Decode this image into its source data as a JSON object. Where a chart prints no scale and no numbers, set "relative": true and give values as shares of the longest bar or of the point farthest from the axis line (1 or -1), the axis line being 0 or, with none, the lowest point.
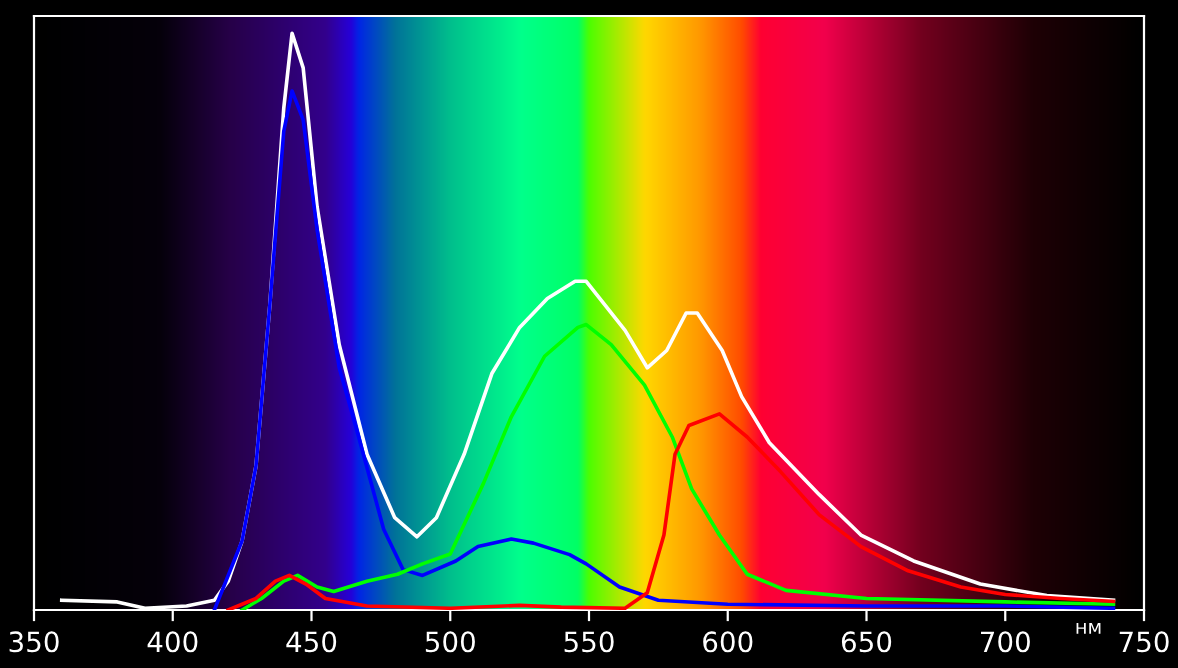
{
  "chart_data": {
    "type": "line",
    "relative": true,
    "xlabel": "нм",
    "xlim": [
      350,
      750
    ],
    "xticks": [
      350,
      400,
      450,
      500,
      550,
      600,
      650,
      700,
      750
    ],
    "series": [
      {
        "color": "#ffffff",
        "x": [
          360,
          380,
          390,
          405,
          415,
          420,
          425,
          430,
          435,
          440,
          443,
          447,
          452,
          460,
          470,
          480,
          488,
          495,
          505,
          515,
          525,
          535,
          545,
          549,
          563,
          571,
          578,
          585,
          589,
          598,
          605,
          615,
          633,
          648,
          667,
          691,
          715,
          739
        ],
        "values": [
          0.017,
          0.014,
          0.003,
          0.007,
          0.017,
          0.05,
          0.12,
          0.25,
          0.53,
          0.87,
          1.0,
          0.94,
          0.7,
          0.46,
          0.27,
          0.16,
          0.127,
          0.16,
          0.27,
          0.41,
          0.49,
          0.54,
          0.57,
          0.57,
          0.485,
          0.42,
          0.45,
          0.515,
          0.515,
          0.45,
          0.37,
          0.29,
          0.2,
          0.13,
          0.085,
          0.045,
          0.025,
          0.017
        ]
      },
      {
        "color": "#0000ff",
        "x": [
          415,
          425,
          430,
          435,
          440,
          443,
          447,
          452,
          460,
          467,
          476,
          483,
          490,
          502,
          510,
          522,
          530,
          543,
          549,
          561,
          575,
          600,
          650,
          700,
          739
        ],
        "values": [
          0.0,
          0.12,
          0.25,
          0.53,
          0.83,
          0.9,
          0.85,
          0.66,
          0.42,
          0.3,
          0.14,
          0.07,
          0.06,
          0.085,
          0.11,
          0.123,
          0.116,
          0.096,
          0.08,
          0.04,
          0.017,
          0.01,
          0.007,
          0.007,
          0.003
        ]
      },
      {
        "color": "#00ff00",
        "x": [
          425,
          432,
          440,
          445,
          452,
          458,
          470,
          481,
          490,
          500,
          512,
          522,
          534,
          546,
          549,
          558,
          570,
          580,
          587,
          597,
          607,
          621,
          650,
          700,
          739
        ],
        "values": [
          0.0,
          0.02,
          0.05,
          0.06,
          0.04,
          0.032,
          0.05,
          0.062,
          0.08,
          0.097,
          0.22,
          0.335,
          0.44,
          0.49,
          0.495,
          0.46,
          0.39,
          0.3,
          0.21,
          0.13,
          0.062,
          0.034,
          0.02,
          0.014,
          0.01
        ]
      },
      {
        "color": "#ff0000",
        "x": [
          420,
          430,
          437,
          442,
          448,
          455,
          470,
          500,
          525,
          540,
          563,
          571,
          577,
          581,
          586,
          597,
          607,
          619,
          633,
          648,
          665,
          684,
          700,
          720,
          739
        ],
        "values": [
          0.0,
          0.02,
          0.05,
          0.06,
          0.045,
          0.02,
          0.007,
          0.003,
          0.008,
          0.005,
          0.003,
          0.03,
          0.13,
          0.27,
          0.32,
          0.34,
          0.3,
          0.24,
          0.165,
          0.11,
          0.068,
          0.04,
          0.027,
          0.02,
          0.015
        ]
      }
    ]
  }
}
